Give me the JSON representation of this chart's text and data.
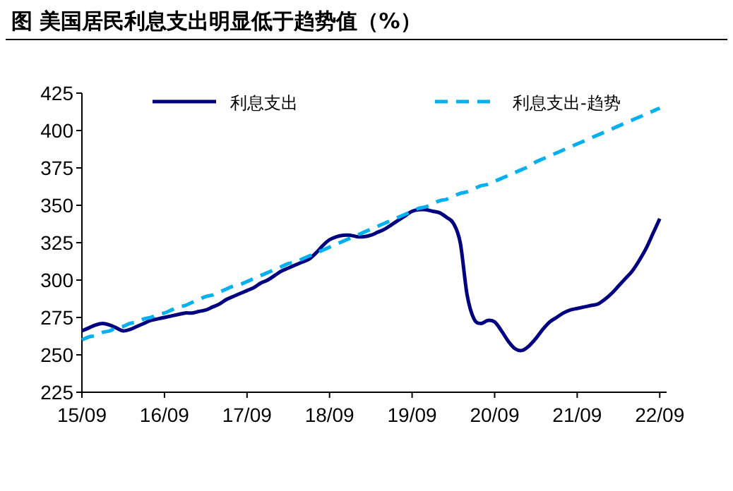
{
  "chart_data": {
    "type": "line",
    "title": "图 美国居民利息支出明显低于趋势值（%）",
    "categories": [
      "15/09",
      null,
      null,
      null,
      null,
      null,
      null,
      null,
      null,
      null,
      null,
      null,
      "16/09",
      null,
      null,
      null,
      null,
      null,
      null,
      null,
      null,
      null,
      null,
      null,
      "17/09",
      null,
      null,
      null,
      null,
      null,
      null,
      null,
      null,
      null,
      null,
      null,
      "18/09",
      null,
      null,
      null,
      null,
      null,
      null,
      null,
      null,
      null,
      null,
      null,
      "19/09",
      null,
      null,
      null,
      null,
      null,
      null,
      null,
      null,
      null,
      null,
      null,
      "20/09",
      null,
      null,
      null,
      null,
      null,
      null,
      null,
      null,
      null,
      null,
      null,
      "21/09",
      null,
      null,
      null,
      null,
      null,
      null,
      null,
      null,
      null,
      null,
      null,
      "22/09"
    ],
    "ylim": [
      225,
      425
    ],
    "yticks": [
      225,
      250,
      275,
      300,
      325,
      350,
      375,
      400,
      425
    ],
    "legend": "top",
    "grid": false,
    "series": [
      {
        "name": "利息支出",
        "color": "#000080",
        "line_style": "solid",
        "values": [
          266,
          268,
          270,
          271,
          270,
          268,
          266,
          267,
          269,
          271,
          273,
          274,
          275,
          276,
          277,
          278,
          278,
          279,
          280,
          282,
          284,
          287,
          289,
          291,
          293,
          295,
          298,
          300,
          303,
          306,
          308,
          310,
          312,
          314,
          318,
          323,
          327,
          329,
          330,
          330,
          329,
          329,
          330,
          332,
          334,
          337,
          340,
          343,
          346,
          347,
          347,
          346,
          345,
          342,
          338,
          325,
          290,
          274,
          271,
          273,
          272,
          266,
          259,
          254,
          253,
          256,
          261,
          267,
          272,
          275,
          278,
          280,
          281,
          282,
          283,
          284,
          287,
          291,
          296,
          301,
          306,
          313,
          321,
          331,
          341
        ]
      },
      {
        "name": "利息支出-趋势",
        "color": "#00b0f0",
        "line_style": "dashed",
        "values": [
          260,
          262,
          263,
          265,
          266,
          268,
          269,
          271,
          272,
          274,
          275,
          277,
          278,
          280,
          282,
          283,
          285,
          287,
          289,
          290,
          292,
          294,
          296,
          297,
          299,
          301,
          303,
          305,
          307,
          309,
          311,
          312,
          314,
          316,
          318,
          320,
          322,
          324,
          326,
          328,
          330,
          332,
          334,
          336,
          338,
          340,
          342,
          344,
          346,
          348,
          349,
          351,
          353,
          354,
          356,
          358,
          359,
          361,
          363,
          364,
          366,
          368,
          370,
          372,
          374,
          376,
          379,
          381,
          383,
          385,
          387,
          389,
          391,
          393,
          395,
          397,
          399,
          401,
          403,
          405,
          407,
          409,
          411,
          413,
          415
        ]
      }
    ]
  }
}
